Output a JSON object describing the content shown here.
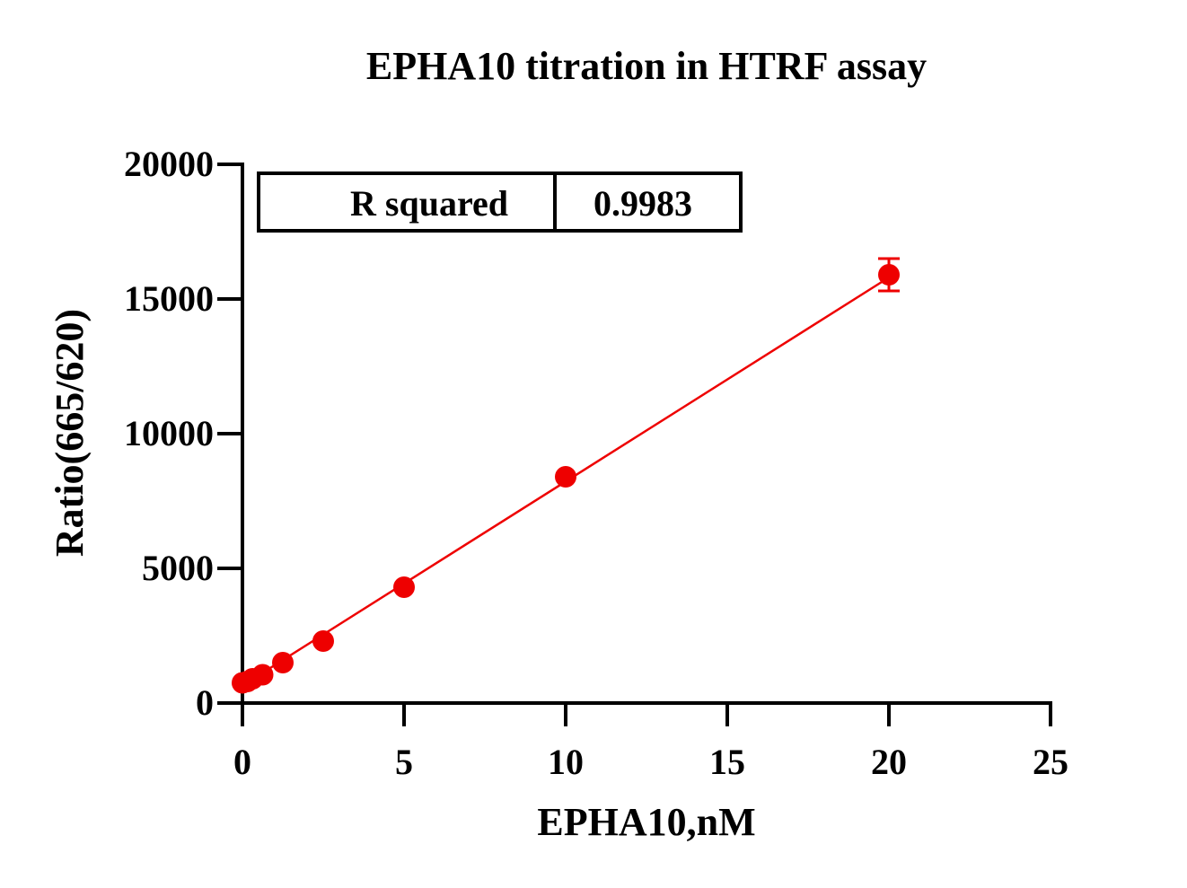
{
  "chart_data": {
    "type": "scatter",
    "title": "EPHA10 titration in HTRF assay",
    "xlabel": "EPHA10,nM",
    "ylabel": "Ratio(665/620)",
    "xlim": [
      0,
      25
    ],
    "ylim": [
      0,
      20000
    ],
    "xticks": [
      0,
      5,
      10,
      15,
      20,
      25
    ],
    "yticks": [
      0,
      5000,
      10000,
      15000,
      20000
    ],
    "xtick_labels": [
      "0",
      "5",
      "10",
      "15",
      "20",
      "25"
    ],
    "ytick_labels": [
      "0",
      "5000",
      "10000",
      "15000",
      "20000"
    ],
    "grid": false,
    "colors": {
      "series": "#ee0000",
      "axis": "#000000"
    },
    "series": [
      {
        "x": [
          0,
          0.156,
          0.3125,
          0.625,
          1.25,
          2.5,
          5,
          10,
          20
        ],
        "y": [
          750,
          800,
          900,
          1050,
          1500,
          2300,
          4300,
          8400,
          15900
        ],
        "error": [
          0,
          0,
          0,
          0,
          0,
          0,
          0,
          0,
          600
        ]
      }
    ],
    "fit_line": {
      "type": "linear",
      "x": [
        0,
        20
      ],
      "y": [
        650,
        15800
      ]
    },
    "r_squared": {
      "label": "R squared",
      "value": "0.9983",
      "position": "top-left"
    }
  }
}
